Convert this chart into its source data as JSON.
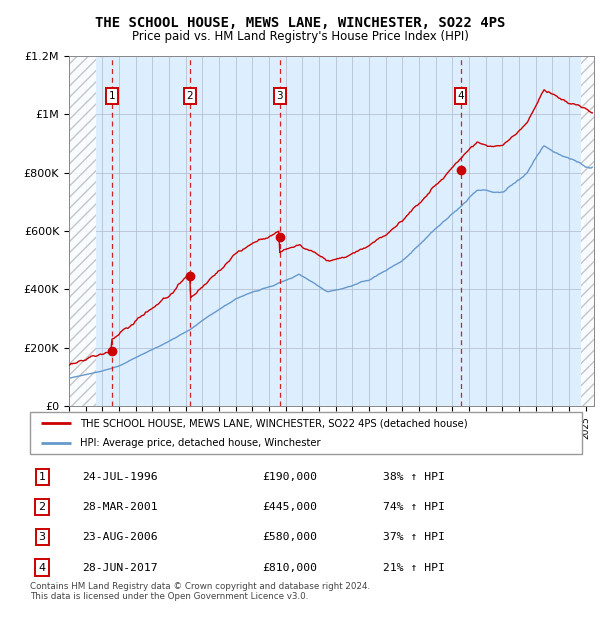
{
  "title": "THE SCHOOL HOUSE, MEWS LANE, WINCHESTER, SO22 4PS",
  "subtitle": "Price paid vs. HM Land Registry's House Price Index (HPI)",
  "ylim": [
    0,
    1200000
  ],
  "xlim_start": 1994.0,
  "xlim_end": 2025.5,
  "yticks": [
    0,
    200000,
    400000,
    600000,
    800000,
    1000000,
    1200000
  ],
  "ytick_labels": [
    "£0",
    "£200K",
    "£400K",
    "£600K",
    "£800K",
    "£1M",
    "£1.2M"
  ],
  "transactions": [
    {
      "num": 1,
      "date": "24-JUL-1996",
      "price": 190000,
      "x": 1996.56,
      "pct": "38%",
      "dir": "↑"
    },
    {
      "num": 2,
      "date": "28-MAR-2001",
      "price": 445000,
      "x": 2001.24,
      "pct": "74%",
      "dir": "↑"
    },
    {
      "num": 3,
      "date": "23-AUG-2006",
      "price": 580000,
      "x": 2006.64,
      "pct": "37%",
      "dir": "↑"
    },
    {
      "num": 4,
      "date": "28-JUN-2017",
      "price": 810000,
      "x": 2017.49,
      "pct": "21%",
      "dir": "↑"
    }
  ],
  "hatch_end": 1995.6,
  "hatch_start2": 2024.7,
  "hatch_end2": 2025.5,
  "legend_line1": "THE SCHOOL HOUSE, MEWS LANE, WINCHESTER, SO22 4PS (detached house)",
  "legend_line2": "HPI: Average price, detached house, Winchester",
  "footnote": "Contains HM Land Registry data © Crown copyright and database right 2024.\nThis data is licensed under the Open Government Licence v3.0.",
  "red_color": "#cc0000",
  "blue_color": "#6699cc",
  "bg_color": "#ddeeff"
}
